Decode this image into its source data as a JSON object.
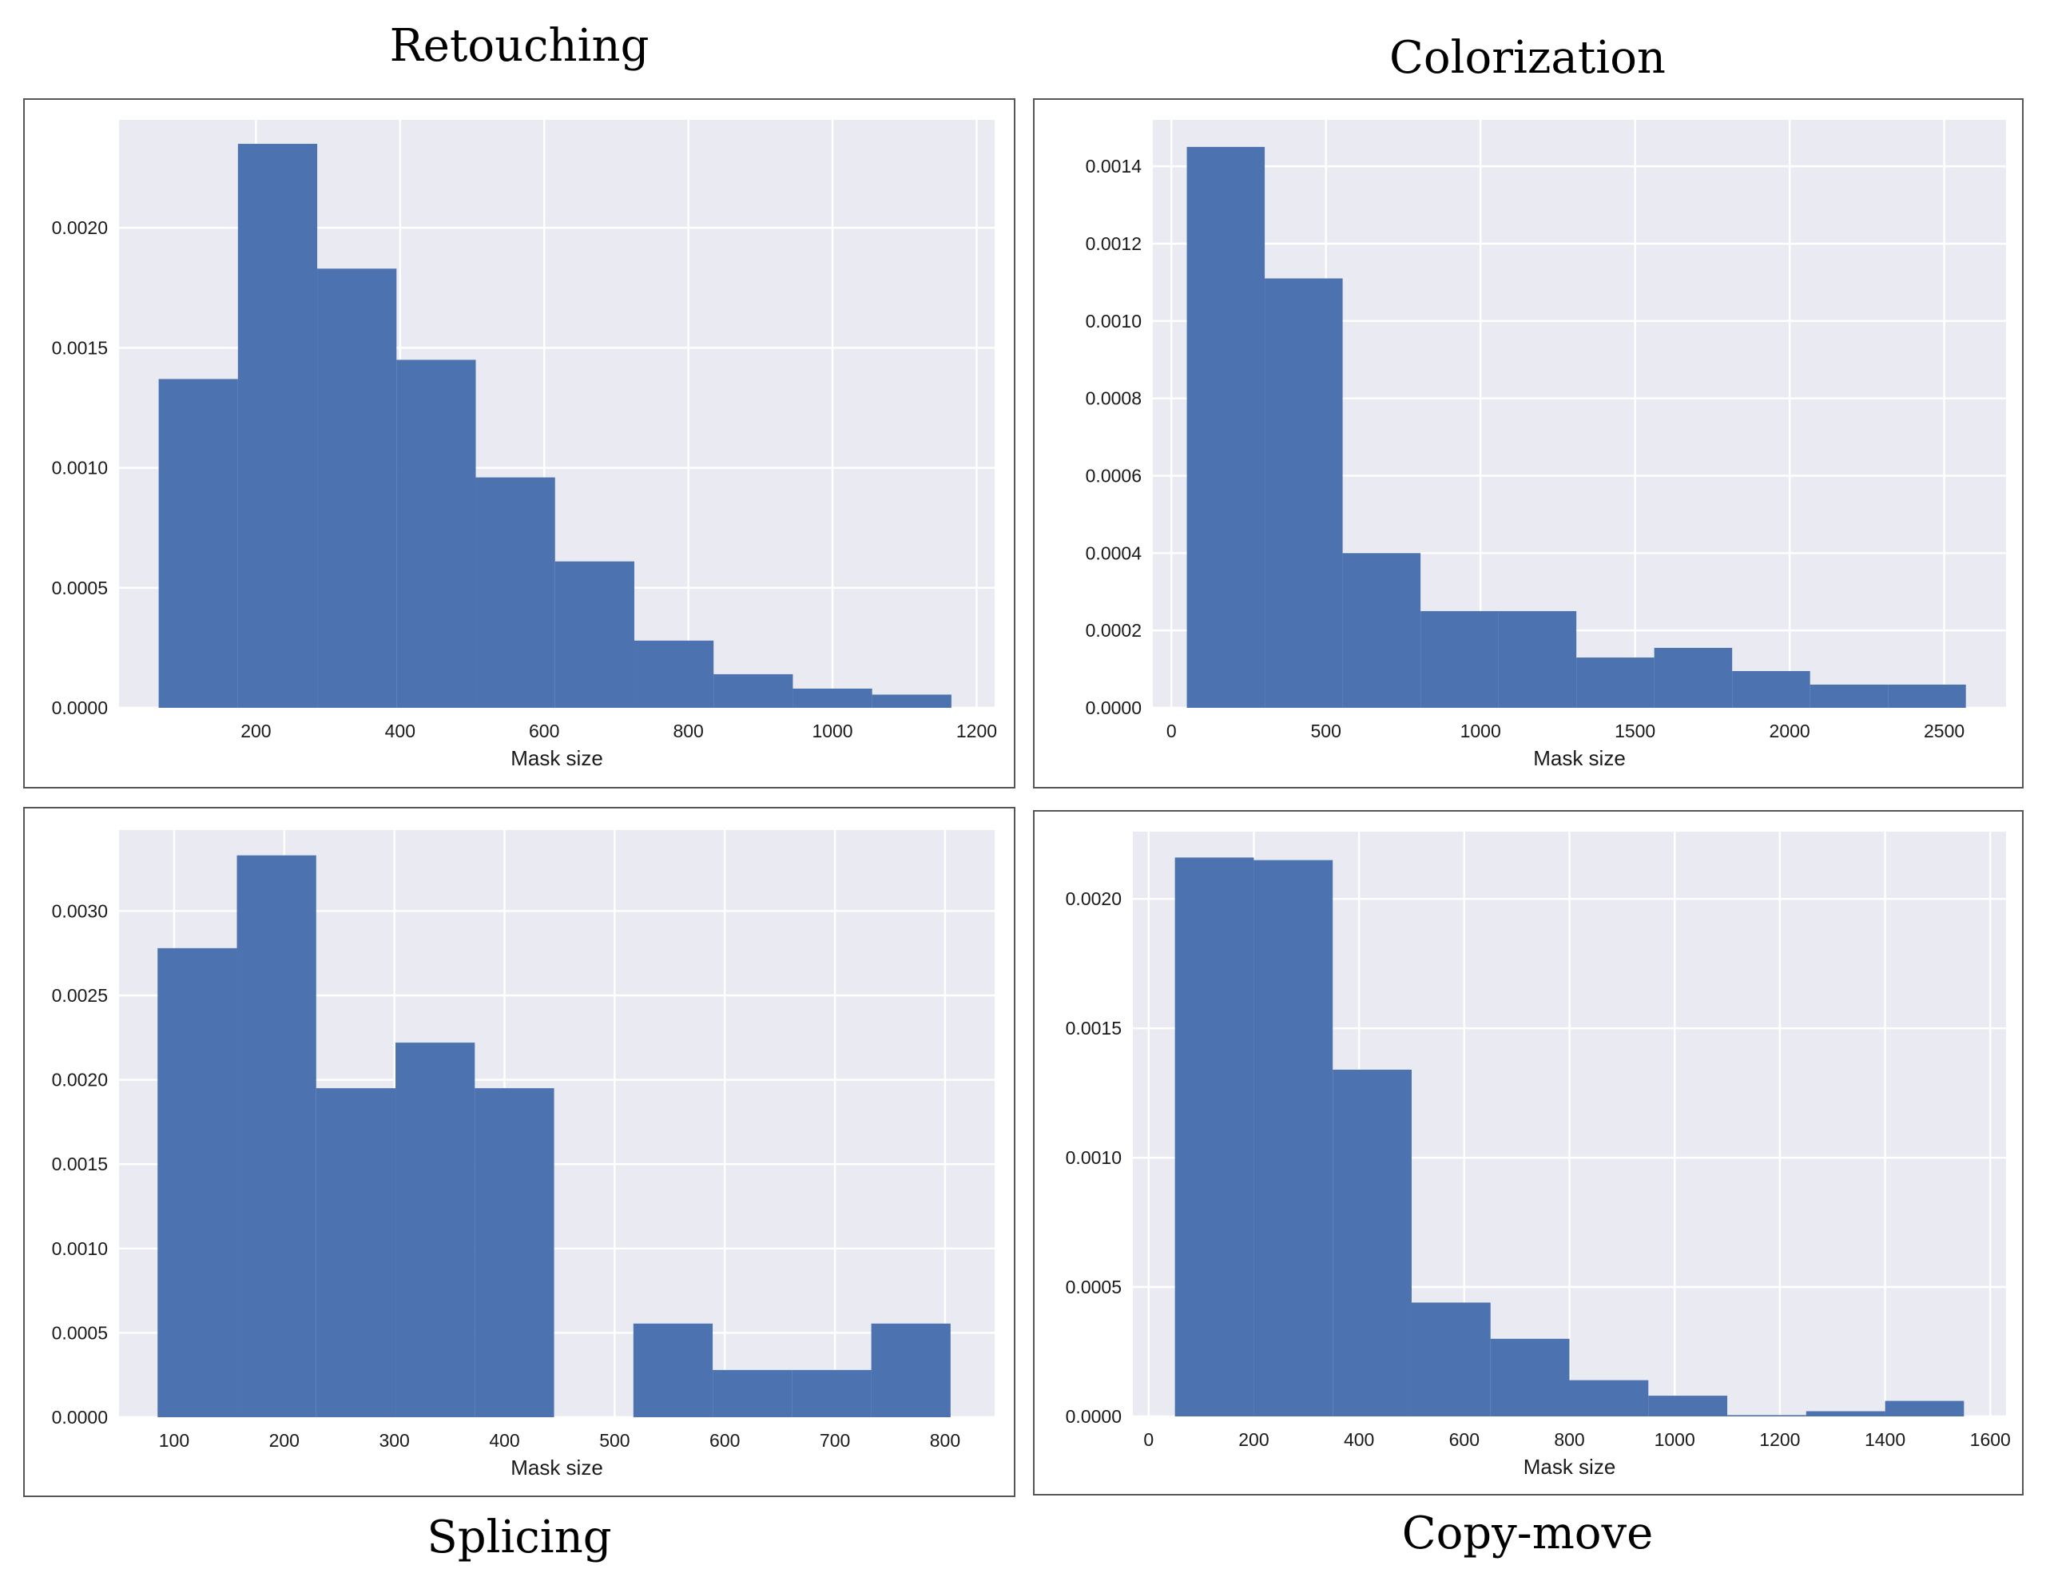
{
  "colors": {
    "bar": "#4c72b0",
    "plot_bg": "#eaeaf2",
    "grid": "#ffffff",
    "frame": "#555555"
  },
  "chart_data": [
    {
      "id": "retouching",
      "type": "bar",
      "title": "Retouching",
      "xlabel": "Mask size",
      "ylabel": "",
      "xlim": [
        10,
        1225
      ],
      "ylim": [
        0,
        0.00245
      ],
      "xticks": [
        200,
        400,
        600,
        800,
        1000,
        1200
      ],
      "xtick_labels": [
        "200",
        "400",
        "600",
        "800",
        "1000",
        "1200"
      ],
      "yticks": [
        0,
        0.0005,
        0.001,
        0.0015,
        0.002
      ],
      "ytick_labels": [
        "0.0000",
        "0.0005",
        "0.0010",
        "0.0015",
        "0.0020"
      ],
      "bin_edges": [
        65,
        175,
        285,
        395,
        505,
        615,
        725,
        835,
        945,
        1055,
        1165
      ],
      "values": [
        0.00137,
        0.00235,
        0.00183,
        0.00145,
        0.00096,
        0.00061,
        0.00028,
        0.00014,
        8e-05,
        5.5e-05
      ]
    },
    {
      "id": "colorization",
      "type": "bar",
      "title": "Colorization",
      "xlabel": "Mask size",
      "ylabel": "",
      "xlim": [
        -60,
        2700
      ],
      "ylim": [
        0,
        0.00152
      ],
      "xticks": [
        0,
        500,
        1000,
        1500,
        2000,
        2500
      ],
      "xtick_labels": [
        "0",
        "500",
        "1000",
        "1500",
        "2000",
        "2500"
      ],
      "yticks": [
        0,
        0.0002,
        0.0004,
        0.0006,
        0.0008,
        0.001,
        0.0012,
        0.0014
      ],
      "ytick_labels": [
        "0.0000",
        "0.0002",
        "0.0004",
        "0.0006",
        "0.0008",
        "0.0010",
        "0.0012",
        "0.0014"
      ],
      "bin_edges": [
        50,
        302,
        554,
        806,
        1058,
        1310,
        1562,
        1814,
        2066,
        2318,
        2570
      ],
      "values": [
        0.00145,
        0.00111,
        0.0004,
        0.00025,
        0.00025,
        0.00013,
        0.000155,
        9.5e-05,
        6e-05,
        6e-05
      ]
    },
    {
      "id": "splicing",
      "type": "bar",
      "title": "Splicing",
      "xlabel": "Mask size",
      "ylabel": "",
      "xlim": [
        50,
        845
      ],
      "ylim": [
        0,
        0.00348
      ],
      "xticks": [
        100,
        200,
        300,
        400,
        500,
        600,
        700,
        800
      ],
      "xtick_labels": [
        "100",
        "200",
        "300",
        "400",
        "500",
        "600",
        "700",
        "800"
      ],
      "yticks": [
        0,
        0.0005,
        0.001,
        0.0015,
        0.002,
        0.0025,
        0.003
      ],
      "ytick_labels": [
        "0.0000",
        "0.0005",
        "0.0010",
        "0.0015",
        "0.0020",
        "0.0025",
        "0.0030"
      ],
      "bin_edges": [
        85,
        157,
        229,
        301,
        373,
        445,
        517,
        589,
        661,
        733,
        805
      ],
      "values": [
        0.00278,
        0.00333,
        0.00195,
        0.00222,
        0.00195,
        0.0,
        0.000555,
        0.00028,
        0.00028,
        0.000555
      ]
    },
    {
      "id": "copy-move",
      "type": "bar",
      "title": "Copy-move",
      "xlabel": "Mask size",
      "ylabel": "",
      "xlim": [
        -30,
        1630
      ],
      "ylim": [
        0,
        0.00226
      ],
      "xticks": [
        0,
        200,
        400,
        600,
        800,
        1000,
        1200,
        1400,
        1600
      ],
      "xtick_labels": [
        "0",
        "200",
        "400",
        "600",
        "800",
        "1000",
        "1200",
        "1400",
        "1600"
      ],
      "yticks": [
        0,
        0.0005,
        0.001,
        0.0015,
        0.002
      ],
      "ytick_labels": [
        "0.0000",
        "0.0005",
        "0.0010",
        "0.0015",
        "0.0020"
      ],
      "bin_edges": [
        50,
        200,
        350,
        500,
        650,
        800,
        950,
        1100,
        1250,
        1400,
        1550
      ],
      "values": [
        0.00216,
        0.00215,
        0.00134,
        0.00044,
        0.0003,
        0.00014,
        8e-05,
        5e-06,
        2e-05,
        6e-05
      ]
    }
  ]
}
